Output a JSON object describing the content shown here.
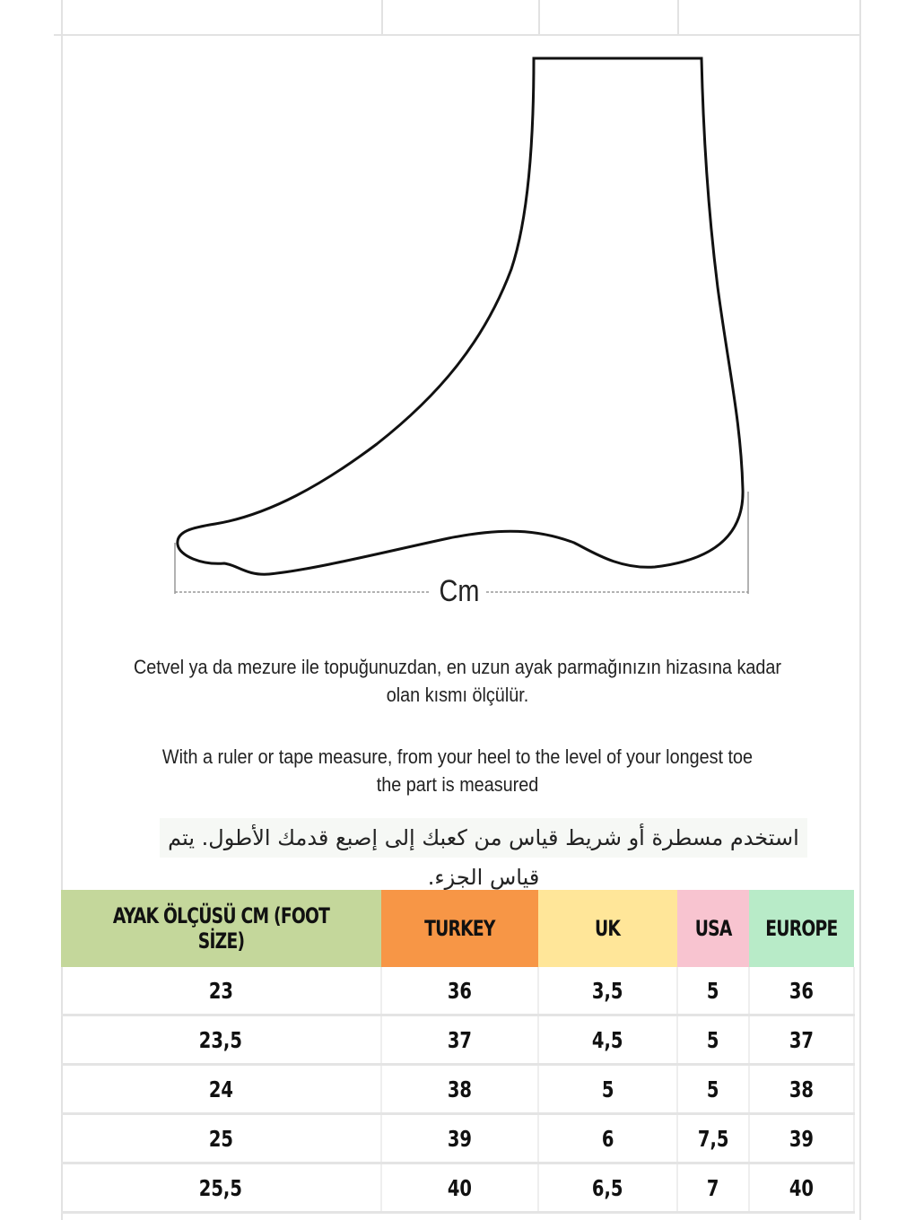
{
  "diagram": {
    "measure_label": "Cm"
  },
  "instructions": {
    "turkish_line1": "Cetvel ya da mezure ile topuğunuzdan, en uzun ayak parmağınızın hizasına kadar",
    "turkish_line2": "olan kısmı ölçülür.",
    "english_line1": "With a ruler or tape measure, from your heel to the level of your longest toe",
    "english_line2": "the part is measured",
    "arabic": "استخدم مسطرة أو شريط قياس من كعبك إلى إصبع قدمك الأطول.  يتم قياس الجزء."
  },
  "size_table": {
    "headers": [
      {
        "label": "AYAK ÖLÇÜSÜ CM (FOOT SİZE)",
        "color": "#c4d79b"
      },
      {
        "label": "TURKEY",
        "color": "#f79646"
      },
      {
        "label": "UK",
        "color": "#ffe699"
      },
      {
        "label": "USA",
        "color": "#f8c4d0"
      },
      {
        "label": "EUROPE",
        "color": "#b8ebc8"
      }
    ],
    "rows": [
      [
        "23",
        "36",
        "3,5",
        "5",
        "36"
      ],
      [
        "23,5",
        "37",
        "4,5",
        "5",
        "37"
      ],
      [
        "24",
        "38",
        "5",
        "5",
        "38"
      ],
      [
        "25",
        "39",
        "6",
        "7,5",
        "39"
      ],
      [
        "25,5",
        "40",
        "6,5",
        "7",
        "40"
      ]
    ]
  }
}
